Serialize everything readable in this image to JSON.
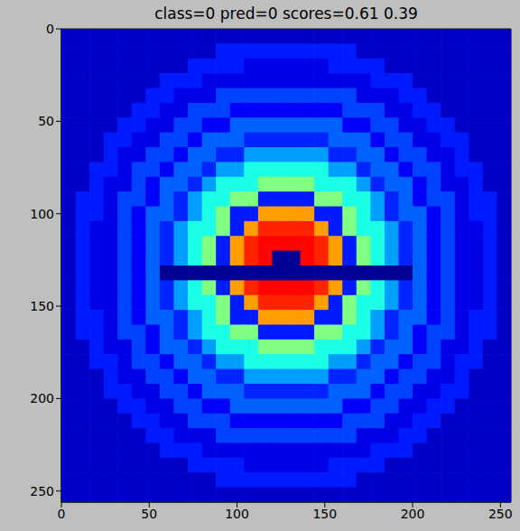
{
  "chart_data": {
    "type": "heatmap",
    "title": "class=0 pred=0 scores=0.61 0.39",
    "xlim": [
      0,
      256
    ],
    "ylim": [
      256,
      0
    ],
    "xticks": [
      0,
      50,
      100,
      150,
      200,
      250
    ],
    "yticks": [
      0,
      50,
      100,
      150,
      200,
      250
    ],
    "cells": [
      [
        0.07,
        0.07,
        0.07,
        0.07,
        0.07,
        0.07,
        0.07,
        0.07,
        0.07,
        0.07,
        0.07,
        0.07,
        0.07,
        0.07,
        0.07,
        0.07,
        0.07,
        0.07,
        0.07,
        0.07,
        0.07,
        0.07,
        0.07,
        0.07,
        0.07,
        0.07,
        0.07,
        0.07,
        0.07,
        0.07,
        0.07,
        0.07
      ],
      [
        0.07,
        0.07,
        0.07,
        0.07,
        0.07,
        0.07,
        0.07,
        0.07,
        0.07,
        0.07,
        0.07,
        0.15,
        0.15,
        0.15,
        0.15,
        0.15,
        0.15,
        0.15,
        0.15,
        0.15,
        0.15,
        0.07,
        0.07,
        0.07,
        0.07,
        0.07,
        0.07,
        0.07,
        0.07,
        0.07,
        0.07,
        0.07
      ],
      [
        0.07,
        0.07,
        0.07,
        0.07,
        0.07,
        0.07,
        0.07,
        0.07,
        0.07,
        0.15,
        0.15,
        0.15,
        0.15,
        0.1,
        0.1,
        0.1,
        0.1,
        0.1,
        0.1,
        0.15,
        0.15,
        0.15,
        0.15,
        0.07,
        0.07,
        0.07,
        0.07,
        0.07,
        0.07,
        0.07,
        0.07,
        0.07
      ],
      [
        0.07,
        0.07,
        0.07,
        0.07,
        0.07,
        0.07,
        0.07,
        0.15,
        0.15,
        0.15,
        0.1,
        0.1,
        0.1,
        0.1,
        0.1,
        0.1,
        0.1,
        0.1,
        0.1,
        0.1,
        0.1,
        0.1,
        0.15,
        0.15,
        0.15,
        0.07,
        0.07,
        0.07,
        0.07,
        0.07,
        0.07,
        0.07
      ],
      [
        0.07,
        0.07,
        0.07,
        0.07,
        0.07,
        0.07,
        0.15,
        0.15,
        0.1,
        0.1,
        0.1,
        0.19,
        0.19,
        0.19,
        0.19,
        0.19,
        0.19,
        0.19,
        0.19,
        0.19,
        0.19,
        0.1,
        0.1,
        0.1,
        0.15,
        0.15,
        0.07,
        0.07,
        0.07,
        0.07,
        0.07,
        0.07
      ],
      [
        0.07,
        0.07,
        0.07,
        0.07,
        0.07,
        0.15,
        0.15,
        0.1,
        0.1,
        0.19,
        0.19,
        0.19,
        0.12,
        0.12,
        0.12,
        0.12,
        0.12,
        0.12,
        0.12,
        0.12,
        0.19,
        0.19,
        0.19,
        0.1,
        0.1,
        0.15,
        0.15,
        0.07,
        0.07,
        0.07,
        0.07,
        0.07
      ],
      [
        0.07,
        0.07,
        0.07,
        0.07,
        0.15,
        0.15,
        0.1,
        0.1,
        0.19,
        0.19,
        0.12,
        0.12,
        0.22,
        0.22,
        0.22,
        0.22,
        0.22,
        0.22,
        0.22,
        0.22,
        0.12,
        0.12,
        0.19,
        0.19,
        0.1,
        0.1,
        0.15,
        0.15,
        0.07,
        0.07,
        0.07,
        0.07
      ],
      [
        0.07,
        0.07,
        0.07,
        0.15,
        0.15,
        0.1,
        0.1,
        0.19,
        0.19,
        0.12,
        0.22,
        0.22,
        0.22,
        0.16,
        0.16,
        0.16,
        0.16,
        0.16,
        0.16,
        0.22,
        0.22,
        0.22,
        0.12,
        0.19,
        0.19,
        0.1,
        0.1,
        0.15,
        0.15,
        0.07,
        0.07,
        0.07
      ],
      [
        0.07,
        0.07,
        0.07,
        0.15,
        0.1,
        0.1,
        0.19,
        0.19,
        0.12,
        0.22,
        0.22,
        0.16,
        0.16,
        0.28,
        0.28,
        0.28,
        0.28,
        0.28,
        0.28,
        0.16,
        0.16,
        0.22,
        0.22,
        0.12,
        0.19,
        0.19,
        0.1,
        0.1,
        0.15,
        0.07,
        0.07,
        0.07
      ],
      [
        0.07,
        0.07,
        0.15,
        0.15,
        0.1,
        0.19,
        0.19,
        0.12,
        0.22,
        0.22,
        0.16,
        0.28,
        0.28,
        0.4,
        0.4,
        0.4,
        0.4,
        0.4,
        0.4,
        0.28,
        0.28,
        0.16,
        0.22,
        0.22,
        0.12,
        0.19,
        0.19,
        0.1,
        0.15,
        0.15,
        0.07,
        0.07
      ],
      [
        0.07,
        0.07,
        0.15,
        0.1,
        0.1,
        0.19,
        0.12,
        0.22,
        0.22,
        0.16,
        0.28,
        0.4,
        0.4,
        0.4,
        0.5,
        0.5,
        0.5,
        0.5,
        0.4,
        0.4,
        0.4,
        0.28,
        0.16,
        0.22,
        0.22,
        0.12,
        0.19,
        0.1,
        0.1,
        0.15,
        0.07,
        0.07
      ],
      [
        0.07,
        0.15,
        0.15,
        0.1,
        0.19,
        0.19,
        0.12,
        0.22,
        0.16,
        0.28,
        0.4,
        0.4,
        0.5,
        0.5,
        0.15,
        0.15,
        0.15,
        0.15,
        0.5,
        0.5,
        0.4,
        0.4,
        0.28,
        0.16,
        0.22,
        0.12,
        0.19,
        0.19,
        0.1,
        0.15,
        0.15,
        0.07
      ],
      [
        0.07,
        0.15,
        0.15,
        0.1,
        0.19,
        0.12,
        0.22,
        0.22,
        0.16,
        0.28,
        0.4,
        0.5,
        0.15,
        0.15,
        0.72,
        0.72,
        0.72,
        0.72,
        0.15,
        0.15,
        0.5,
        0.4,
        0.28,
        0.16,
        0.22,
        0.22,
        0.12,
        0.19,
        0.1,
        0.15,
        0.15,
        0.07
      ],
      [
        0.07,
        0.15,
        0.1,
        0.1,
        0.19,
        0.12,
        0.22,
        0.16,
        0.28,
        0.4,
        0.4,
        0.5,
        0.15,
        0.72,
        0.84,
        0.84,
        0.84,
        0.84,
        0.72,
        0.15,
        0.5,
        0.4,
        0.4,
        0.28,
        0.16,
        0.22,
        0.12,
        0.19,
        0.1,
        0.1,
        0.15,
        0.07
      ],
      [
        0.07,
        0.15,
        0.1,
        0.1,
        0.19,
        0.12,
        0.22,
        0.16,
        0.28,
        0.4,
        0.5,
        0.15,
        0.72,
        0.84,
        0.87,
        0.87,
        0.87,
        0.87,
        0.84,
        0.72,
        0.15,
        0.5,
        0.4,
        0.28,
        0.16,
        0.22,
        0.12,
        0.19,
        0.1,
        0.1,
        0.15,
        0.07
      ],
      [
        0.07,
        0.15,
        0.1,
        0.1,
        0.19,
        0.12,
        0.22,
        0.16,
        0.28,
        0.4,
        0.5,
        0.15,
        0.72,
        0.84,
        0.87,
        0.02,
        0.02,
        0.87,
        0.84,
        0.72,
        0.15,
        0.5,
        0.4,
        0.28,
        0.16,
        0.22,
        0.12,
        0.19,
        0.1,
        0.1,
        0.15,
        0.07
      ],
      [
        0.07,
        0.15,
        0.1,
        0.1,
        0.19,
        0.12,
        0.22,
        0.02,
        0.02,
        0.02,
        0.02,
        0.02,
        0.02,
        0.02,
        0.02,
        0.02,
        0.02,
        0.02,
        0.02,
        0.02,
        0.02,
        0.02,
        0.02,
        0.02,
        0.02,
        0.22,
        0.12,
        0.19,
        0.1,
        0.1,
        0.15,
        0.07
      ],
      [
        0.07,
        0.15,
        0.1,
        0.1,
        0.19,
        0.12,
        0.22,
        0.16,
        0.28,
        0.4,
        0.5,
        0.15,
        0.72,
        0.84,
        0.87,
        0.87,
        0.87,
        0.87,
        0.84,
        0.72,
        0.15,
        0.5,
        0.4,
        0.28,
        0.16,
        0.22,
        0.12,
        0.19,
        0.1,
        0.1,
        0.15,
        0.07
      ],
      [
        0.07,
        0.15,
        0.1,
        0.1,
        0.19,
        0.12,
        0.22,
        0.16,
        0.28,
        0.4,
        0.4,
        0.5,
        0.15,
        0.72,
        0.84,
        0.84,
        0.84,
        0.84,
        0.72,
        0.15,
        0.5,
        0.4,
        0.4,
        0.28,
        0.16,
        0.22,
        0.12,
        0.19,
        0.1,
        0.1,
        0.15,
        0.07
      ],
      [
        0.07,
        0.15,
        0.15,
        0.1,
        0.19,
        0.12,
        0.22,
        0.22,
        0.16,
        0.28,
        0.4,
        0.5,
        0.15,
        0.15,
        0.72,
        0.72,
        0.72,
        0.72,
        0.15,
        0.15,
        0.5,
        0.4,
        0.28,
        0.16,
        0.22,
        0.22,
        0.12,
        0.19,
        0.1,
        0.15,
        0.15,
        0.07
      ],
      [
        0.07,
        0.15,
        0.15,
        0.1,
        0.19,
        0.19,
        0.12,
        0.22,
        0.16,
        0.28,
        0.4,
        0.4,
        0.5,
        0.5,
        0.15,
        0.15,
        0.15,
        0.15,
        0.5,
        0.5,
        0.4,
        0.4,
        0.28,
        0.16,
        0.22,
        0.12,
        0.19,
        0.19,
        0.1,
        0.15,
        0.15,
        0.07
      ],
      [
        0.07,
        0.07,
        0.15,
        0.1,
        0.1,
        0.19,
        0.12,
        0.22,
        0.22,
        0.16,
        0.28,
        0.4,
        0.4,
        0.4,
        0.5,
        0.5,
        0.5,
        0.5,
        0.4,
        0.4,
        0.4,
        0.28,
        0.16,
        0.22,
        0.22,
        0.12,
        0.19,
        0.1,
        0.1,
        0.15,
        0.07,
        0.07
      ],
      [
        0.07,
        0.07,
        0.15,
        0.15,
        0.1,
        0.19,
        0.19,
        0.12,
        0.22,
        0.22,
        0.16,
        0.28,
        0.28,
        0.4,
        0.4,
        0.4,
        0.4,
        0.4,
        0.4,
        0.28,
        0.28,
        0.16,
        0.22,
        0.22,
        0.12,
        0.19,
        0.19,
        0.1,
        0.15,
        0.15,
        0.07,
        0.07
      ],
      [
        0.07,
        0.07,
        0.07,
        0.15,
        0.1,
        0.1,
        0.19,
        0.19,
        0.12,
        0.22,
        0.22,
        0.16,
        0.16,
        0.28,
        0.28,
        0.28,
        0.28,
        0.28,
        0.28,
        0.16,
        0.16,
        0.22,
        0.22,
        0.12,
        0.19,
        0.19,
        0.1,
        0.1,
        0.15,
        0.07,
        0.07,
        0.07
      ],
      [
        0.07,
        0.07,
        0.07,
        0.15,
        0.15,
        0.1,
        0.1,
        0.19,
        0.19,
        0.12,
        0.22,
        0.22,
        0.22,
        0.16,
        0.16,
        0.16,
        0.16,
        0.16,
        0.16,
        0.22,
        0.22,
        0.22,
        0.12,
        0.19,
        0.19,
        0.1,
        0.1,
        0.15,
        0.15,
        0.07,
        0.07,
        0.07
      ],
      [
        0.07,
        0.07,
        0.07,
        0.07,
        0.15,
        0.15,
        0.1,
        0.1,
        0.19,
        0.19,
        0.12,
        0.12,
        0.22,
        0.22,
        0.22,
        0.22,
        0.22,
        0.22,
        0.22,
        0.22,
        0.12,
        0.12,
        0.19,
        0.19,
        0.1,
        0.1,
        0.15,
        0.15,
        0.07,
        0.07,
        0.07,
        0.07
      ],
      [
        0.07,
        0.07,
        0.07,
        0.07,
        0.07,
        0.15,
        0.15,
        0.1,
        0.1,
        0.19,
        0.19,
        0.19,
        0.12,
        0.12,
        0.12,
        0.12,
        0.12,
        0.12,
        0.12,
        0.12,
        0.19,
        0.19,
        0.19,
        0.1,
        0.1,
        0.15,
        0.15,
        0.07,
        0.07,
        0.07,
        0.07,
        0.07
      ],
      [
        0.07,
        0.07,
        0.07,
        0.07,
        0.07,
        0.07,
        0.15,
        0.15,
        0.1,
        0.1,
        0.1,
        0.19,
        0.19,
        0.19,
        0.19,
        0.19,
        0.19,
        0.19,
        0.19,
        0.19,
        0.19,
        0.1,
        0.1,
        0.1,
        0.15,
        0.15,
        0.07,
        0.07,
        0.07,
        0.07,
        0.07,
        0.07
      ],
      [
        0.07,
        0.07,
        0.07,
        0.07,
        0.07,
        0.07,
        0.07,
        0.15,
        0.15,
        0.15,
        0.1,
        0.1,
        0.1,
        0.1,
        0.1,
        0.1,
        0.1,
        0.1,
        0.1,
        0.1,
        0.1,
        0.1,
        0.15,
        0.15,
        0.15,
        0.07,
        0.07,
        0.07,
        0.07,
        0.07,
        0.07,
        0.07
      ],
      [
        0.07,
        0.07,
        0.07,
        0.07,
        0.07,
        0.07,
        0.07,
        0.07,
        0.07,
        0.15,
        0.15,
        0.15,
        0.15,
        0.1,
        0.1,
        0.1,
        0.1,
        0.1,
        0.1,
        0.15,
        0.15,
        0.15,
        0.15,
        0.07,
        0.07,
        0.07,
        0.07,
        0.07,
        0.07,
        0.07,
        0.07,
        0.07
      ],
      [
        0.07,
        0.07,
        0.07,
        0.07,
        0.07,
        0.07,
        0.07,
        0.07,
        0.07,
        0.07,
        0.07,
        0.15,
        0.15,
        0.15,
        0.15,
        0.15,
        0.15,
        0.15,
        0.15,
        0.15,
        0.15,
        0.07,
        0.07,
        0.07,
        0.07,
        0.07,
        0.07,
        0.07,
        0.07,
        0.07,
        0.07,
        0.07
      ],
      [
        0.07,
        0.07,
        0.07,
        0.07,
        0.07,
        0.07,
        0.07,
        0.07,
        0.07,
        0.07,
        0.07,
        0.07,
        0.07,
        0.07,
        0.07,
        0.07,
        0.07,
        0.07,
        0.07,
        0.07,
        0.07,
        0.07,
        0.07,
        0.07,
        0.07,
        0.07,
        0.07,
        0.07,
        0.07,
        0.07,
        0.07,
        0.07
      ]
    ]
  }
}
